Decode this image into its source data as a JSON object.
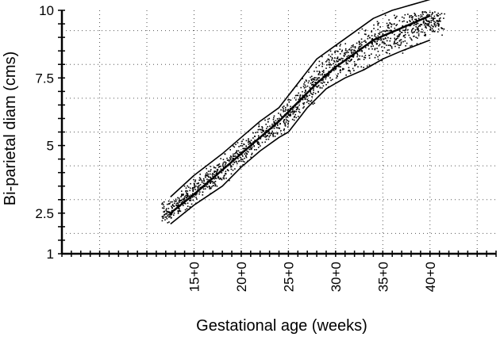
{
  "chart_data": {
    "type": "scatter",
    "title": "",
    "xlabel": "Gestational age (weeks)",
    "ylabel": "Bi-parietal diam (cms)",
    "xlim": [
      1,
      47
    ],
    "ylim": [
      1,
      10
    ],
    "x_ticks": [
      {
        "value": 15,
        "label": "15+0"
      },
      {
        "value": 20,
        "label": "20+0"
      },
      {
        "value": 25,
        "label": "25+0"
      },
      {
        "value": 30,
        "label": "30+0"
      },
      {
        "value": 35,
        "label": "35+0"
      },
      {
        "value": 40,
        "label": "40+0"
      }
    ],
    "y_ticks": [
      {
        "value": 1,
        "label": "1"
      },
      {
        "value": 2.5,
        "label": "2.5"
      },
      {
        "value": 5,
        "label": "5"
      },
      {
        "value": 7.5,
        "label": "7.5"
      },
      {
        "value": 10,
        "label": "10"
      }
    ],
    "grid": true,
    "grid_style": "dotted",
    "series": [
      {
        "role": "upper-boundary",
        "type": "line",
        "x": [
          12.5,
          15,
          18,
          20,
          22,
          24,
          26,
          28,
          30,
          32,
          34,
          36,
          38,
          40
        ],
        "y": [
          3.1,
          3.9,
          4.7,
          5.3,
          5.9,
          6.4,
          7.3,
          8.2,
          8.7,
          9.2,
          9.7,
          10.0,
          10.2,
          10.4
        ]
      },
      {
        "role": "median",
        "type": "line",
        "x": [
          12.5,
          15,
          18,
          20,
          22,
          24,
          26,
          28,
          30,
          32,
          34,
          36,
          38,
          40
        ],
        "y": [
          2.5,
          3.2,
          4.1,
          4.7,
          5.3,
          5.9,
          6.6,
          7.3,
          7.9,
          8.4,
          8.9,
          9.2,
          9.5,
          9.8
        ]
      },
      {
        "role": "lower-boundary",
        "type": "line",
        "x": [
          12.5,
          15,
          18,
          20,
          22,
          24,
          25,
          27,
          29,
          31,
          33,
          35,
          37,
          40
        ],
        "y": [
          2.1,
          2.8,
          3.5,
          4.2,
          4.8,
          5.3,
          5.5,
          6.4,
          7.1,
          7.5,
          7.8,
          8.2,
          8.5,
          8.9
        ]
      }
    ],
    "scatter_points": {
      "x_range": [
        11.5,
        41.5
      ],
      "spread": "dense cloud between the boundary lines"
    },
    "colors": {
      "line": "#000000",
      "points": "#000000",
      "background": "#ffffff"
    }
  }
}
